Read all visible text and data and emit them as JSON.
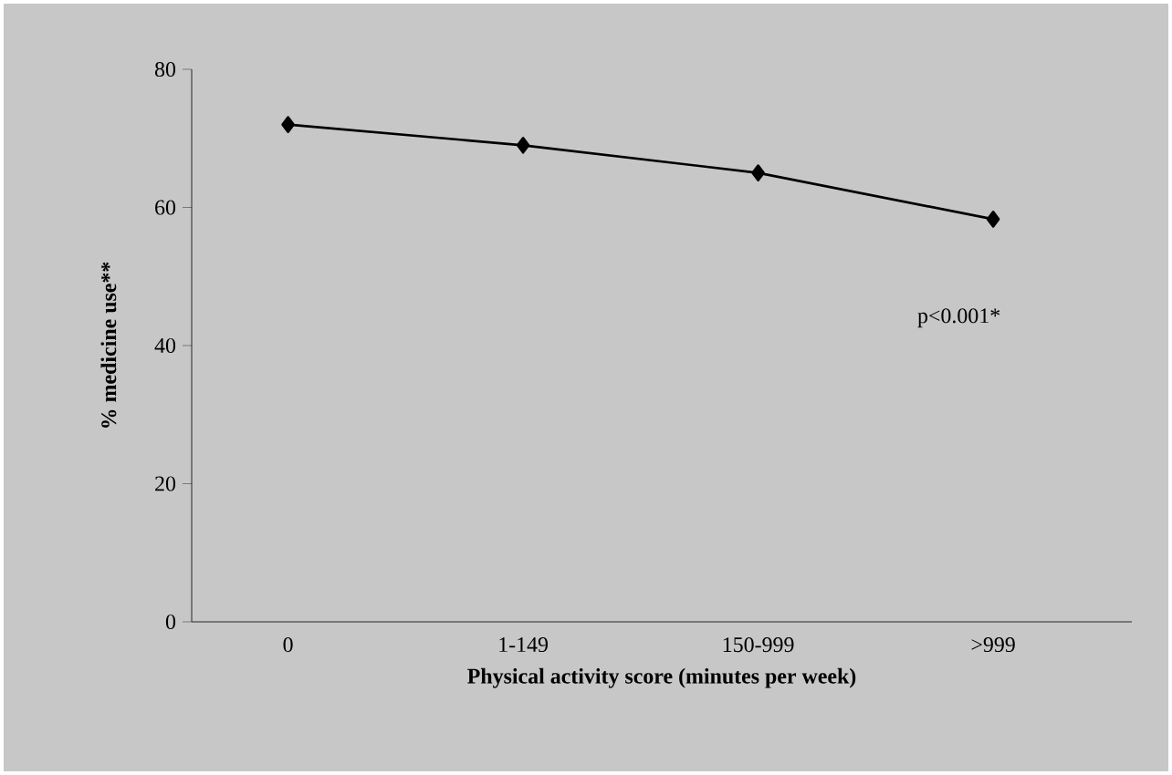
{
  "chart_data": {
    "type": "line",
    "xlabel": "Physical activity score (minutes per week)",
    "ylabel": "% medicine use**",
    "categories": [
      "0",
      "1-149",
      "150-999",
      ">999"
    ],
    "series": [
      {
        "color": "#000000",
        "values": [
          72,
          69,
          65,
          58.3
        ]
      }
    ],
    "ylim": [
      0,
      80
    ],
    "yticks": [
      0,
      20,
      40,
      60,
      80
    ],
    "marker": "diamond",
    "line_style": "solid",
    "annotations": [
      "p<0.001*"
    ]
  }
}
